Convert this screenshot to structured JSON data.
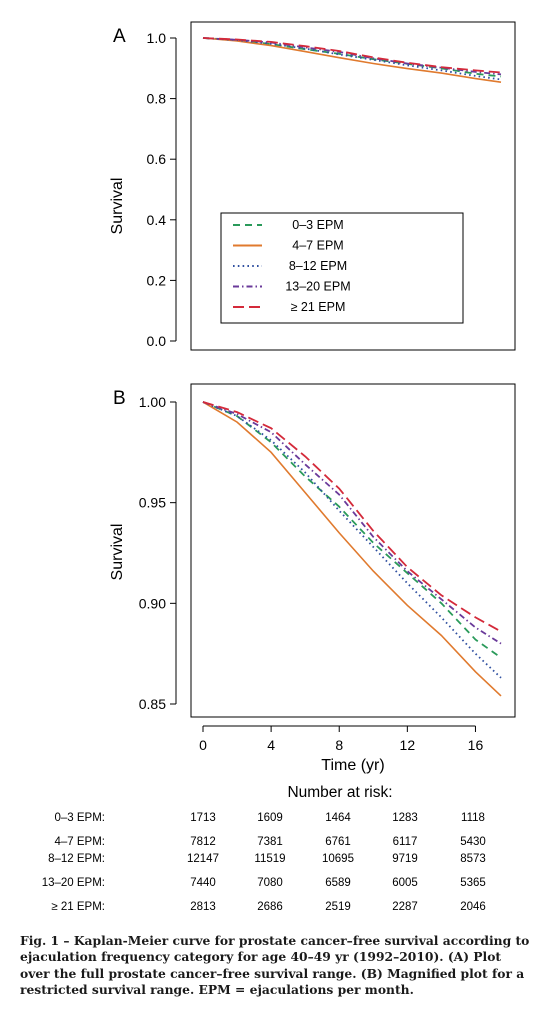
{
  "chart_data": [
    {
      "type": "line",
      "panel_label": "A",
      "ylabel": "Survival",
      "ylim": [
        0,
        1.0
      ],
      "yticks": [
        "1.0",
        "0.8",
        "0.6",
        "0.4",
        "0.2",
        "0.0"
      ],
      "yticks_values": [
        1.0,
        0.8,
        0.6,
        0.4,
        0.2,
        0.0
      ],
      "xlim": [
        0,
        17.5
      ],
      "legend": {
        "placement": "center",
        "entries": [
          "0–3 EPM",
          "4–7 EPM",
          "8–12 EPM",
          "13–20 EPM",
          "≥ 21 EPM"
        ]
      },
      "series": [
        {
          "name": "0–3 EPM",
          "color": "#2a9a5a",
          "style": "dashed",
          "x": [
            0,
            2,
            4,
            6,
            8,
            10,
            12,
            14,
            16,
            17.5
          ],
          "y": [
            1.0,
            0.993,
            0.98,
            0.963,
            0.948,
            0.93,
            0.915,
            0.9,
            0.882,
            0.873
          ]
        },
        {
          "name": "4–7 EPM",
          "color": "#e07a2e",
          "style": "solid",
          "x": [
            0,
            2,
            4,
            6,
            8,
            10,
            12,
            14,
            16,
            17.5
          ],
          "y": [
            1.0,
            0.99,
            0.975,
            0.955,
            0.935,
            0.916,
            0.899,
            0.884,
            0.866,
            0.854
          ]
        },
        {
          "name": "8–12 EPM",
          "color": "#3050a0",
          "style": "dotted",
          "x": [
            0,
            2,
            4,
            6,
            8,
            10,
            12,
            14,
            16,
            17.5
          ],
          "y": [
            1.0,
            0.993,
            0.981,
            0.965,
            0.946,
            0.928,
            0.91,
            0.893,
            0.875,
            0.863
          ]
        },
        {
          "name": "13–20 EPM",
          "color": "#6a3a9a",
          "style": "dashdot",
          "x": [
            0,
            2,
            4,
            6,
            8,
            10,
            12,
            14,
            16,
            17.5
          ],
          "y": [
            1.0,
            0.994,
            0.985,
            0.969,
            0.954,
            0.933,
            0.916,
            0.902,
            0.888,
            0.88
          ]
        },
        {
          "name": "≥ 21 EPM",
          "color": "#d42a3a",
          "style": "longdash",
          "x": [
            0,
            2,
            4,
            6,
            8,
            10,
            12,
            14,
            16,
            17.5
          ],
          "y": [
            1.0,
            0.995,
            0.987,
            0.973,
            0.957,
            0.936,
            0.918,
            0.904,
            0.893,
            0.886
          ]
        }
      ]
    },
    {
      "type": "line",
      "panel_label": "B",
      "ylabel": "Survival",
      "xlabel": "Time (yr)",
      "ylim": [
        0.845,
        1.0
      ],
      "yticks": [
        "1.00",
        "0.95",
        "0.90",
        "0.85"
      ],
      "yticks_values": [
        1.0,
        0.95,
        0.9,
        0.85
      ],
      "xlim": [
        0,
        17.5
      ],
      "xticks": [
        "0",
        "4",
        "8",
        "12",
        "16"
      ],
      "xticks_values": [
        0,
        4,
        8,
        12,
        16
      ],
      "series": [
        {
          "name": "0–3 EPM",
          "color": "#2a9a5a",
          "style": "dashed",
          "x": [
            0,
            2,
            4,
            6,
            8,
            10,
            12,
            14,
            16,
            17.5
          ],
          "y": [
            1.0,
            0.993,
            0.98,
            0.963,
            0.948,
            0.93,
            0.915,
            0.9,
            0.882,
            0.873
          ]
        },
        {
          "name": "4–7 EPM",
          "color": "#e07a2e",
          "style": "solid",
          "x": [
            0,
            2,
            4,
            6,
            8,
            10,
            12,
            14,
            16,
            17.5
          ],
          "y": [
            1.0,
            0.99,
            0.975,
            0.955,
            0.935,
            0.916,
            0.899,
            0.884,
            0.866,
            0.854
          ]
        },
        {
          "name": "8–12 EPM",
          "color": "#3050a0",
          "style": "dotted",
          "x": [
            0,
            2,
            4,
            6,
            8,
            10,
            12,
            14,
            16,
            17.5
          ],
          "y": [
            1.0,
            0.993,
            0.981,
            0.965,
            0.946,
            0.928,
            0.91,
            0.893,
            0.875,
            0.863
          ]
        },
        {
          "name": "13–20 EPM",
          "color": "#6a3a9a",
          "style": "dashdot",
          "x": [
            0,
            2,
            4,
            6,
            8,
            10,
            12,
            14,
            16,
            17.5
          ],
          "y": [
            1.0,
            0.994,
            0.985,
            0.969,
            0.954,
            0.933,
            0.916,
            0.902,
            0.888,
            0.88
          ]
        },
        {
          "name": "≥ 21 EPM",
          "color": "#d42a3a",
          "style": "longdash",
          "x": [
            0,
            2,
            4,
            6,
            8,
            10,
            12,
            14,
            16,
            17.5
          ],
          "y": [
            1.0,
            0.995,
            0.987,
            0.973,
            0.957,
            0.936,
            0.918,
            0.904,
            0.893,
            0.886
          ]
        }
      ]
    }
  ],
  "risk_table": {
    "title": "Number at risk:",
    "rows": [
      {
        "label": "0–3 EPM:",
        "values": [
          "1713",
          "1609",
          "1464",
          "1283",
          "1118"
        ]
      },
      {
        "label": "4–7 EPM:",
        "values": [
          "7812",
          "7381",
          "6761",
          "6117",
          "5430"
        ]
      },
      {
        "label": "8–12 EPM:",
        "values": [
          "12147",
          "11519",
          "10695",
          "9719",
          "8573"
        ]
      },
      {
        "label": "13–20 EPM:",
        "values": [
          "7440",
          "7080",
          "6589",
          "6005",
          "5365"
        ]
      },
      {
        "label": "≥ 21 EPM:",
        "values": [
          "2813",
          "2686",
          "2519",
          "2287",
          "2046"
        ]
      }
    ]
  },
  "caption": "Fig. 1 – Kaplan-Meier curve for prostate cancer–free survival according to ejaculation frequency category for age 40–49 yr (1992–2010). (A) Plot over the full prostate cancer–free survival range. (B) Magnified plot for a restricted survival range. EPM = ejaculations per month."
}
